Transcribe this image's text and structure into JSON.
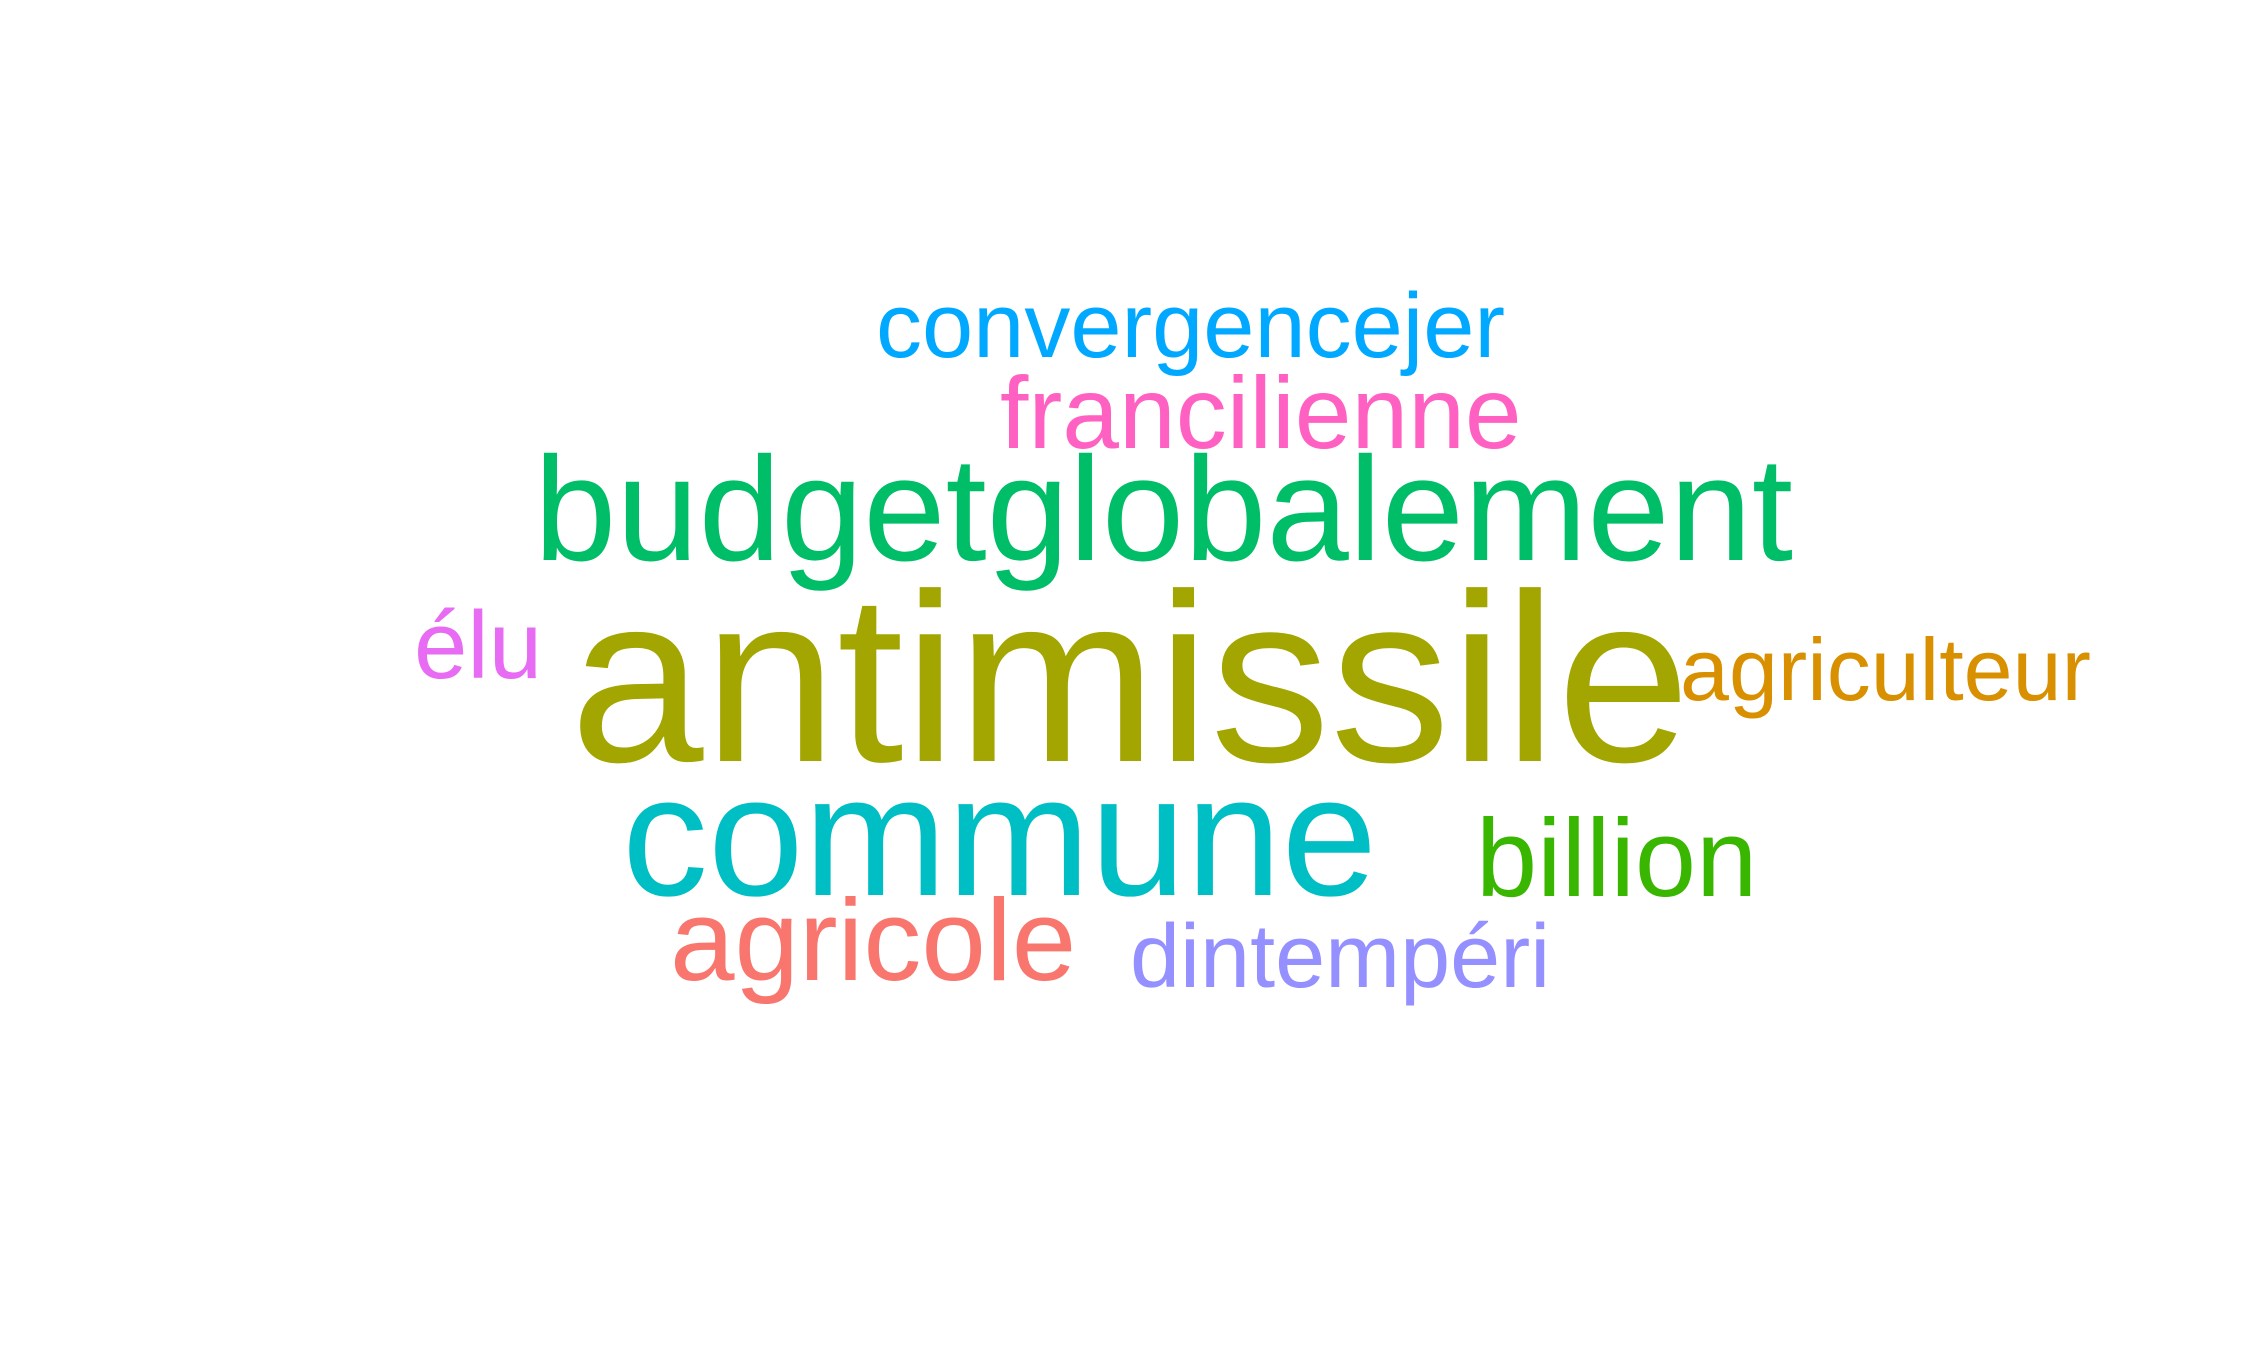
{
  "word_cloud": {
    "words": [
      {
        "text": "convergencejer",
        "color": "#00A9FF"
      },
      {
        "text": "francilienne",
        "color": "#FF61C3"
      },
      {
        "text": "budgetglobalement",
        "color": "#00BE67"
      },
      {
        "text": "élu",
        "color": "#E76BF3"
      },
      {
        "text": "antimissile",
        "color": "#A3A500"
      },
      {
        "text": "agriculteur",
        "color": "#D89000"
      },
      {
        "text": "commune",
        "color": "#00BFC4"
      },
      {
        "text": "billion",
        "color": "#39B600"
      },
      {
        "text": "agricole",
        "color": "#F8766D"
      },
      {
        "text": "dintempéri",
        "color": "#9590FF"
      }
    ]
  }
}
